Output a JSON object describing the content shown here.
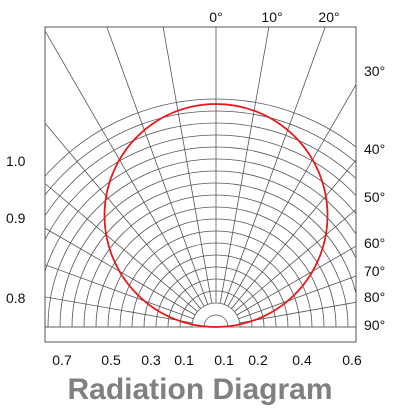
{
  "chart_data": {
    "type": "polar",
    "title": "Radiation Diagram",
    "angle_ticks_top": [
      "0°",
      "10°",
      "20°"
    ],
    "angle_ticks_right": [
      "30°",
      "40°",
      "50°",
      "60°",
      "70°",
      "80°",
      "90°"
    ],
    "left_scale_labels": [
      "1.0",
      "0.9",
      "0.8"
    ],
    "bottom_scale_labels": [
      "0.7",
      "0.5",
      "0.3",
      "0.1",
      "0.1",
      "0.2",
      "0.4",
      "0.6"
    ],
    "series": [
      {
        "color": "#e31b1b",
        "shape": "circle",
        "description_values": {
          "relative_intensity_at_0deg": 1.0,
          "relative_intensity_at_90deg": 0.0
        }
      }
    ],
    "angle_range_deg": [
      -90,
      90
    ],
    "angle_step_deg": 10,
    "grid": true
  }
}
